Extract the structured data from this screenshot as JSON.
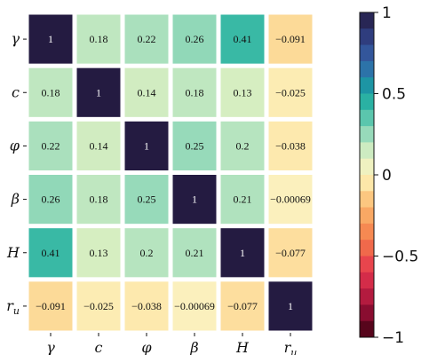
{
  "chart_data": {
    "type": "heatmap",
    "title": "",
    "variables": [
      "γ",
      "c",
      "φ",
      "β",
      "H",
      "r_u"
    ],
    "x_tick_labels": [
      "γ",
      "c",
      "φ",
      "β",
      "H",
      "r_u"
    ],
    "y_tick_labels": [
      "γ",
      "c",
      "φ",
      "β",
      "H",
      "r_u"
    ],
    "matrix": [
      [
        1,
        0.18,
        0.22,
        0.26,
        0.41,
        -0.091
      ],
      [
        0.18,
        1,
        0.14,
        0.18,
        0.13,
        -0.025
      ],
      [
        0.22,
        0.14,
        1,
        0.25,
        0.2,
        -0.038
      ],
      [
        0.26,
        0.18,
        0.25,
        1,
        0.21,
        -0.00069
      ],
      [
        0.41,
        0.13,
        0.2,
        0.21,
        1,
        -0.077
      ],
      [
        -0.091,
        -0.025,
        -0.038,
        -0.00069,
        -0.077,
        1
      ]
    ],
    "cell_labels": [
      [
        "1",
        "0.18",
        "0.22",
        "0.26",
        "0.41",
        "−0.091"
      ],
      [
        "0.18",
        "1",
        "0.14",
        "0.18",
        "0.13",
        "−0.025"
      ],
      [
        "0.22",
        "0.14",
        "1",
        "0.25",
        "0.2",
        "−0.038"
      ],
      [
        "0.26",
        "0.18",
        "0.25",
        "1",
        "0.21",
        "−0.00069"
      ],
      [
        "0.41",
        "0.13",
        "0.2",
        "0.21",
        "1",
        "−0.077"
      ],
      [
        "−0.091",
        "−0.025",
        "−0.038",
        "−0.00069",
        "−0.077",
        "1"
      ]
    ],
    "colorbar": {
      "range": [
        -1,
        1
      ],
      "ticks": [
        1,
        0.5,
        0,
        -0.5,
        -1
      ],
      "tick_labels": [
        "1",
        "0.5",
        "0",
        "−0.5",
        "−1"
      ],
      "levels": 20
    },
    "grid": false,
    "legend_placement": "right"
  }
}
